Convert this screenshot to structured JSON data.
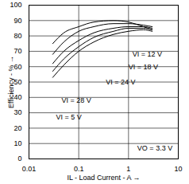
{
  "chart_data": {
    "type": "line",
    "x_label": "IL - Load Current - A",
    "y_label": "Efficiency - %",
    "log": "x",
    "grid": true,
    "xlim": [
      0.01,
      10
    ],
    "xticks": [
      0.01,
      0.1,
      1,
      10
    ],
    "ylim": [
      0,
      100
    ],
    "yticks": [
      0,
      10,
      20,
      30,
      40,
      50,
      60,
      70,
      80,
      90,
      100
    ],
    "x": [
      0.03,
      0.05,
      0.1,
      0.2,
      0.5,
      1,
      2,
      3
    ],
    "series": [
      {
        "name": "VI = 5 V",
        "color": "#000000",
        "values": [
          75,
          82,
          86,
          89,
          90,
          89,
          86,
          84
        ]
      },
      {
        "name": "VI = 12 V",
        "color": "#000000",
        "values": [
          68,
          76,
          83,
          86,
          88,
          88,
          87,
          86
        ]
      },
      {
        "name": "VI = 18 V",
        "color": "#000000",
        "values": [
          62,
          70,
          77,
          82,
          85,
          86,
          86,
          85
        ]
      },
      {
        "name": "VI = 24 V",
        "color": "#000000",
        "values": [
          57,
          65,
          73,
          79,
          83,
          85,
          85,
          84
        ]
      },
      {
        "name": "VI = 28 V",
        "color": "#000000",
        "values": [
          53,
          61,
          70,
          76,
          81,
          83,
          84,
          83
        ]
      }
    ],
    "annotations": [
      {
        "text": "VI = 12 V",
        "x": 1.2,
        "y": 68
      },
      {
        "text": "VI = 18 V",
        "x": 1.0,
        "y": 60
      },
      {
        "text": "VI = 24 V",
        "x": 0.35,
        "y": 50
      },
      {
        "text": "VI = 28 V",
        "x": 0.045,
        "y": 38
      },
      {
        "text": "VI = 5 V",
        "x": 0.035,
        "y": 27
      },
      {
        "text": "VO = 3.3 V",
        "x": 1.5,
        "y": 7
      }
    ]
  }
}
